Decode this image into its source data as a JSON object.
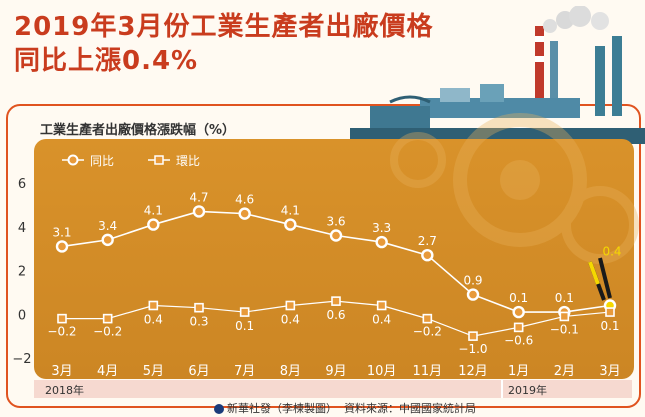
{
  "title": {
    "line1": "2019年3月份工業生產者出廠價格",
    "line2": "同比上漲0.4%"
  },
  "subtitle": "工業生產者出廠價格漲跌幅（%）",
  "legend": {
    "yoy": "同比",
    "mom": "環比"
  },
  "years": {
    "y2018": "2018年",
    "y2019": "2019年"
  },
  "footer": {
    "agency": "新華社發（李楝製圖）",
    "source": "資料來源：中國國家統計局"
  },
  "colors": {
    "title": "#c93c1e",
    "plot_bg": "#d9922a",
    "line": "#ffffff",
    "label_yoy": "#ffffff",
    "highlight": "#f5d800",
    "frame": "#e0531f"
  },
  "chart_data": {
    "type": "line",
    "title": "工業生產者出廠價格漲跌幅（%）",
    "categories": [
      "3月",
      "4月",
      "5月",
      "6月",
      "7月",
      "8月",
      "9月",
      "10月",
      "11月",
      "12月",
      "1月",
      "2月",
      "3月"
    ],
    "series": [
      {
        "name": "同比",
        "values": [
          3.1,
          3.4,
          4.1,
          4.7,
          4.6,
          4.1,
          3.6,
          3.3,
          2.7,
          0.9,
          0.1,
          0.1,
          0.4
        ]
      },
      {
        "name": "環比",
        "values": [
          -0.2,
          -0.2,
          0.4,
          0.3,
          0.1,
          0.4,
          0.6,
          0.4,
          -0.2,
          -1.0,
          -0.6,
          -0.1,
          0.1
        ]
      }
    ],
    "y_ticks": [
      6,
      4,
      2,
      0,
      -2
    ],
    "ylim": [
      -2,
      6
    ],
    "legend_position": "top-left",
    "grid": false
  }
}
